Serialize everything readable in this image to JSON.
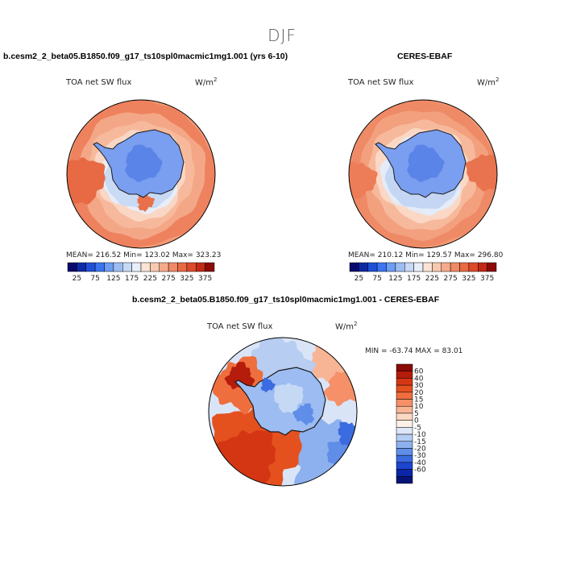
{
  "figure": {
    "season": "DJF",
    "units_label": "W/m",
    "units_exp": "2"
  },
  "panels": [
    {
      "title": "b.cesm2_2_beta05.B1850.f09_g17_ts10spl0macmic1mg1.001 (yrs 6-10)",
      "variable": "TOA net SW flux",
      "stats_text": "MEAN= 216.52   Min= 123.02   Max= 323.23"
    },
    {
      "title": "CERES-EBAF",
      "variable": "TOA net SW flux",
      "stats_text": "MEAN= 210.12   Min= 129.57   Max= 296.80"
    },
    {
      "title": "b.cesm2_2_beta05.B1850.f09_g17_ts10spl0macmic1mg1.001 - CERES-EBAF",
      "variable": "TOA net SW flux",
      "stats_text": "MIN = -63.74  MAX =  83.01"
    }
  ],
  "colorbar_abs": {
    "tick_labels": [
      "25",
      "75",
      "125",
      "175",
      "225",
      "275",
      "325",
      "375"
    ],
    "colors": [
      "#0a0a6e",
      "#0d2aa6",
      "#1f4fd6",
      "#3b74f0",
      "#6e9cf2",
      "#9dbdf2",
      "#c7d9f5",
      "#e6eef9",
      "#fbe3d6",
      "#f8c9b0",
      "#f5ab8b",
      "#f08a66",
      "#e86a45",
      "#dc4a2a",
      "#c22a16",
      "#8c0a08"
    ]
  },
  "colorbar_diff": {
    "tick_labels": [
      "60",
      "40",
      "30",
      "20",
      "15",
      "10",
      "5",
      "0",
      "-5",
      "-10",
      "-15",
      "-20",
      "-30",
      "-40",
      "-60"
    ],
    "colors": [
      "#8a0a06",
      "#b51c0c",
      "#d43614",
      "#e5501f",
      "#ef6e3e",
      "#f59068",
      "#f8b595",
      "#fbd8c4",
      "#fdf0e6",
      "#dde7f7",
      "#b6cdf2",
      "#8db0ee",
      "#5f8de8",
      "#3b6be0",
      "#1c46d0",
      "#0b24a8",
      "#061477"
    ]
  }
}
